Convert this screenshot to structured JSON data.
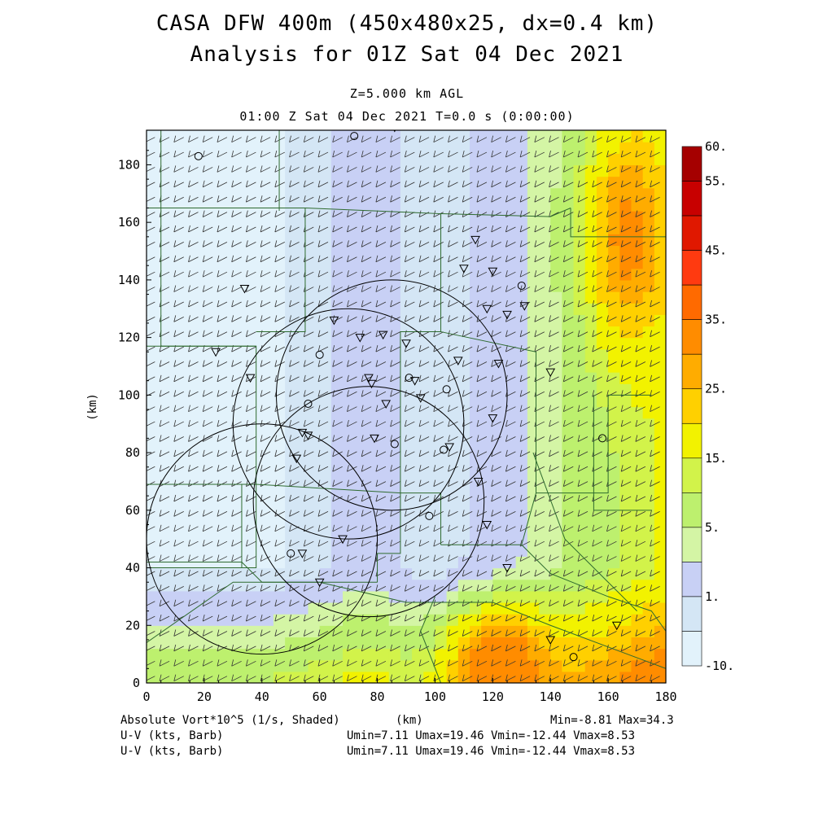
{
  "title_line1": "CASA DFW 400m (450x480x25, dx=0.4 km)",
  "title_line2": "Analysis for 01Z Sat 04 Dec 2021",
  "level_label": "Z=5.000 km AGL",
  "time_label": "01:00 Z Sat 04 Dec 2021    T=0.0 s (0:00:00)",
  "footer": {
    "field1": "Absolute Vort*10^5 (1/s, Shaded)",
    "field2": "U-V (kts, Barb)",
    "field3": "U-V (kts, Barb)",
    "xunit": "(km)",
    "minmax": "Min=-8.81 Max=34.3",
    "uv_stats1": "Umin=7.11 Umax=19.46 Vmin=-12.44 Vmax=8.53",
    "uv_stats2": "Umin=7.11 Umax=19.46 Vmin=-12.44 Vmax=8.53"
  },
  "chart_data": {
    "type": "heatmap",
    "xlabel": "(km)",
    "ylabel": "(km)",
    "xlim": [
      0,
      180
    ],
    "ylim": [
      0,
      192
    ],
    "xticks": [
      "0",
      "20",
      "40",
      "60",
      "80",
      "100",
      "120",
      "140",
      "160",
      "180"
    ],
    "yticks": [
      "0",
      "20",
      "40",
      "60",
      "80",
      "100",
      "120",
      "140",
      "160",
      "180"
    ],
    "colorbar": {
      "labels": [
        "60.",
        "55.",
        "45.",
        "35.",
        "25.",
        "15.",
        "5.",
        "1.",
        "-10."
      ],
      "colors": [
        "#a50000",
        "#c80000",
        "#e01800",
        "#ff3a10",
        "#ff6a00",
        "#ff8c00",
        "#ffac00",
        "#ffd000",
        "#f2f200",
        "#d2f34a",
        "#bdf06e",
        "#d4f5a5",
        "#c8d0f5",
        "#d4e6f5",
        "#e2f2fb"
      ]
    },
    "radar_ring_centers_km": [
      [
        40,
        50
      ],
      [
        77,
        63
      ],
      [
        85,
        100
      ],
      [
        70,
        90
      ]
    ],
    "radar_ring_radius_km": 40,
    "field_regions": [
      {
        "label": "west",
        "value_range": [
          -10,
          1
        ]
      },
      {
        "label": "central",
        "value_range": [
          1,
          5
        ]
      },
      {
        "label": "south-central",
        "value_range": [
          15,
          30
        ]
      },
      {
        "label": "northeast",
        "value_range": [
          25,
          35
        ]
      }
    ],
    "field_min": -8.81,
    "field_max": 34.3,
    "barb_units": "kts"
  }
}
